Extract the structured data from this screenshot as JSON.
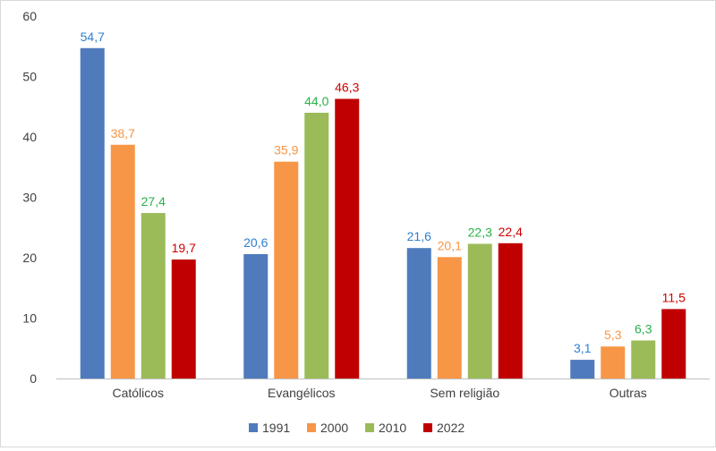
{
  "chart_data": {
    "type": "bar",
    "categories": [
      "Católicos",
      "Evangélicos",
      "Sem religião",
      "Outras"
    ],
    "series": [
      {
        "name": "1991",
        "color": "#4f7bbd",
        "label_color": "#2e7fd0",
        "values": [
          54.7,
          20.6,
          21.6,
          3.1
        ],
        "labels": [
          "54,7",
          "20,6",
          "21,6",
          "3,1"
        ]
      },
      {
        "name": "2000",
        "color": "#f79646",
        "label_color": "#f79646",
        "values": [
          38.7,
          35.9,
          20.1,
          5.3
        ],
        "labels": [
          "38,7",
          "35,9",
          "20,1",
          "5,3"
        ]
      },
      {
        "name": "2010",
        "color": "#9bbb59",
        "label_color": "#27b14a",
        "values": [
          27.4,
          44.0,
          22.3,
          6.3
        ],
        "labels": [
          "27,4",
          "44,0",
          "22,3",
          "6,3"
        ]
      },
      {
        "name": "2022",
        "color": "#c00000",
        "label_color": "#d00000",
        "values": [
          19.7,
          46.3,
          22.4,
          11.5
        ],
        "labels": [
          "19,7",
          "46,3",
          "22,4",
          "11,5"
        ]
      }
    ],
    "ylim": [
      0,
      60
    ],
    "yticks": [
      0,
      10,
      20,
      30,
      40,
      50,
      60
    ],
    "ytick_labels": [
      "0",
      "10",
      "20",
      "30",
      "40",
      "50",
      "60"
    ],
    "grid": false,
    "legend_position": "bottom",
    "title": "",
    "xlabel": "",
    "ylabel": ""
  }
}
